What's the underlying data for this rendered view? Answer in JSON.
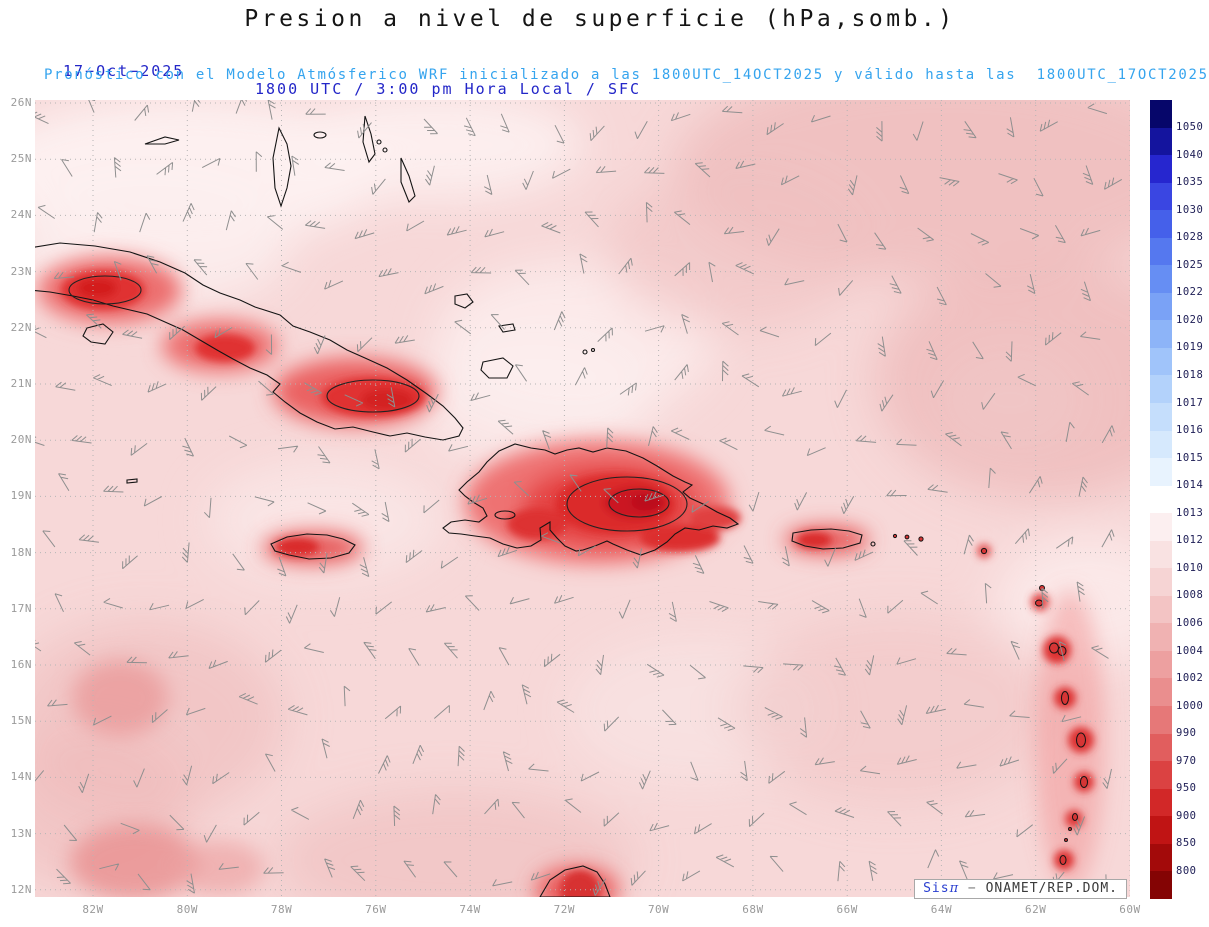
{
  "title": "Presion a nivel de superficie (hPa,somb.)",
  "header": {
    "date": "17−Oct−2025",
    "time_line": "1800 UTC / 3:00 pm Hora Local / SFC",
    "forecast_line": "Pronóstico con el Modelo Atmósferico WRF inicializado a las 1800UTC_14OCT2025 y válido hasta las  1800UTC_17OCT2025"
  },
  "attribution": {
    "brand": "Sis",
    "pi": "π",
    "sep": " − ",
    "org": "ONAMET/REP.DOM."
  },
  "chart_data": {
    "type": "heatmap",
    "title": "Presion a nivel de superficie (hPa,somb.)",
    "variable": "surface pressure (shaded) with wind barbs",
    "units": "hPa",
    "model": "WRF",
    "init_time": "1800UTC_14OCT2025",
    "valid_time": "1800UTC_17OCT2025",
    "region": "Caribbean: Cuba, Jamaica, Hispaniola, Puerto Rico, Bahamas, Lesser Antilles",
    "lat_ticks": [
      "26N",
      "25N",
      "24N",
      "23N",
      "22N",
      "21N",
      "20N",
      "19N",
      "18N",
      "17N",
      "16N",
      "15N",
      "14N",
      "13N",
      "12N"
    ],
    "lon_ticks": [
      "82W",
      "80W",
      "78W",
      "76W",
      "74W",
      "72W",
      "70W",
      "68W",
      "66W",
      "64W",
      "62W",
      "60W"
    ],
    "lat_range_deg_n": [
      12,
      26
    ],
    "lon_range_deg_w": [
      83.2,
      60.0
    ],
    "grid": "dotted, 1 degree latitude / 2 degree longitude",
    "colorbar": {
      "position": "right",
      "levels": [
        1050,
        1040,
        1035,
        1030,
        1028,
        1025,
        1022,
        1020,
        1019,
        1018,
        1017,
        1016,
        1015,
        1014,
        1013,
        1012,
        1010,
        1008,
        1006,
        1004,
        1002,
        1000,
        990,
        970,
        950,
        900,
        850,
        800
      ],
      "colors": [
        "#06066a",
        "#14149e",
        "#2626cf",
        "#3a46e2",
        "#4560ea",
        "#5578ef",
        "#668ef3",
        "#7aa2f6",
        "#8db4f8",
        "#a0c4fa",
        "#b3d2fb",
        "#c5defc",
        "#d6e9fd",
        "#e8f3fe",
        "#ffffff",
        "#fceff0",
        "#f9e2e2",
        "#f6d4d4",
        "#f3c4c4",
        "#f0b2b2",
        "#eda0a0",
        "#ea8e8e",
        "#e67878",
        "#e15e5e",
        "#db4242",
        "#d22828",
        "#c01414",
        "#a30a0a",
        "#840404"
      ]
    },
    "wind_barbs": {
      "color": "#8f8f8f",
      "grid_spacing_deg": 1
    },
    "field_summary": "Broad 1004-1010 hPa light-pink field over the basin; near-white 1012-1013 hPa northwest of Cuba and over the central Bahamas; deeper pink 1004-1006 hPa in the northeast and east; red heat-low minima ~990-1000 hPa over Cuba, Hispaniola (deepest, ~990), Jamaica, Puerto Rico, the Lesser Antilles islands and the Guajira peninsula"
  }
}
